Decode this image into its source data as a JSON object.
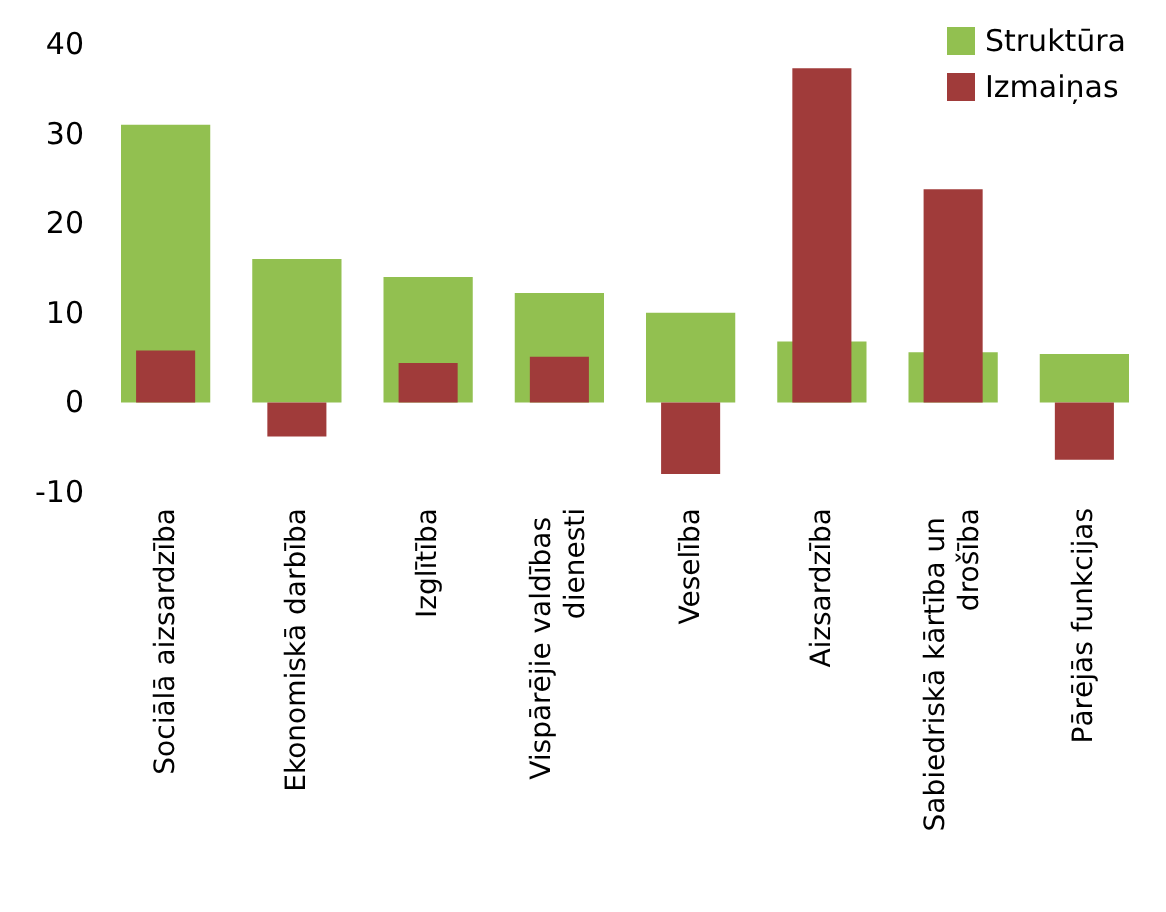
{
  "chart_data": {
    "type": "bar",
    "categories": [
      "Sociālā aizsardzība",
      "Ekonomiskā darbība",
      "Izglītība",
      "Vispārējie valdības dienesti",
      "Veselība",
      "Aizsardzība",
      "Sabiedriskā kārtība un drošība",
      "Pārējās funkcijas"
    ],
    "series": [
      {
        "name": "Struktūra",
        "color": "#92c050",
        "values": [
          31,
          16,
          14,
          12.2,
          10,
          6.8,
          5.6,
          5.4
        ]
      },
      {
        "name": "Izmaiņas",
        "color": "#a03b3a",
        "values": [
          5.8,
          -3.8,
          4.4,
          5.1,
          -8,
          37.3,
          23.8,
          -6.4
        ]
      }
    ],
    "ylim": [
      -10,
      40
    ],
    "yticks": [
      -10,
      0,
      10,
      20,
      30,
      40
    ],
    "grid": false,
    "legend": "top right"
  }
}
